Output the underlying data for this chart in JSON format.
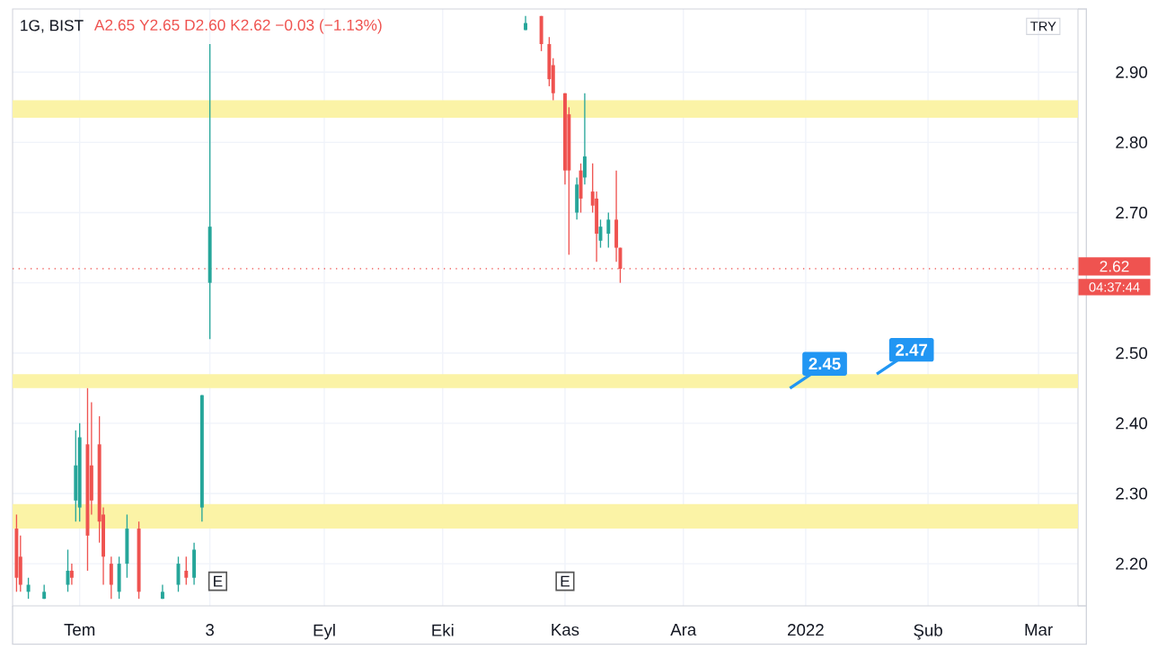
{
  "chart_data": {
    "type": "candlestick",
    "title": "1G, BIST",
    "subtitle": "A2.65 Y2.65 D2.60 K2.62 −0.03 (−1.13%)",
    "x": [
      "2021-06-15",
      "2021-06-16",
      "2021-06-18",
      "2021-06-22",
      "2021-06-28",
      "2021-06-29",
      "2021-06-30",
      "2021-07-01",
      "2021-07-03",
      "2021-07-04",
      "2021-07-06",
      "2021-07-07",
      "2021-07-09",
      "2021-07-11",
      "2021-07-13",
      "2021-07-16",
      "2021-07-22",
      "2021-07-26",
      "2021-07-28",
      "2021-07-30",
      "2021-08-01",
      "2021-08-03",
      "2021-10-22",
      "2021-10-26",
      "2021-10-28",
      "2021-10-29",
      "2021-11-01",
      "2021-11-02",
      "2021-11-04",
      "2021-11-05",
      "2021-11-06",
      "2021-11-08",
      "2021-11-09",
      "2021-11-10",
      "2021-11-12",
      "2021-11-14",
      "2021-11-15"
    ],
    "ohlc": [
      [
        2.25,
        2.27,
        2.16,
        2.18
      ],
      [
        2.21,
        2.24,
        2.16,
        2.17
      ],
      [
        2.16,
        2.18,
        2.15,
        2.17
      ],
      [
        2.15,
        2.17,
        2.15,
        2.16
      ],
      [
        2.17,
        2.22,
        2.16,
        2.19
      ],
      [
        2.19,
        2.2,
        2.17,
        2.18
      ],
      [
        2.29,
        2.39,
        2.26,
        2.34
      ],
      [
        2.28,
        2.4,
        2.26,
        2.38
      ],
      [
        2.37,
        2.45,
        2.19,
        2.24
      ],
      [
        2.34,
        2.43,
        2.27,
        2.29
      ],
      [
        2.37,
        2.41,
        2.23,
        2.26
      ],
      [
        2.27,
        2.28,
        2.17,
        2.21
      ],
      [
        2.2,
        2.21,
        2.15,
        2.17
      ],
      [
        2.16,
        2.21,
        2.15,
        2.2
      ],
      [
        2.2,
        2.27,
        2.18,
        2.25
      ],
      [
        2.25,
        2.26,
        2.15,
        2.16
      ],
      [
        2.15,
        2.17,
        2.15,
        2.16
      ],
      [
        2.17,
        2.21,
        2.16,
        2.2
      ],
      [
        2.19,
        2.21,
        2.17,
        2.18
      ],
      [
        2.18,
        2.23,
        2.17,
        2.22
      ],
      [
        2.28,
        2.44,
        2.26,
        2.44
      ],
      [
        2.6,
        2.94,
        2.52,
        2.68
      ],
      [
        2.96,
        2.98,
        2.96,
        2.97
      ],
      [
        2.98,
        2.98,
        2.93,
        2.94
      ],
      [
        2.94,
        2.95,
        2.88,
        2.89
      ],
      [
        2.91,
        2.92,
        2.86,
        2.87
      ],
      [
        2.87,
        2.87,
        2.74,
        2.76
      ],
      [
        2.84,
        2.85,
        2.64,
        2.76
      ],
      [
        2.7,
        2.75,
        2.69,
        2.74
      ],
      [
        2.76,
        2.77,
        2.7,
        2.72
      ],
      [
        2.75,
        2.87,
        2.74,
        2.78
      ],
      [
        2.73,
        2.77,
        2.7,
        2.71
      ],
      [
        2.72,
        2.73,
        2.63,
        2.67
      ],
      [
        2.66,
        2.69,
        2.65,
        2.68
      ],
      [
        2.67,
        2.7,
        2.65,
        2.69
      ],
      [
        2.69,
        2.76,
        2.63,
        2.65
      ],
      [
        2.65,
        2.65,
        2.6,
        2.62
      ]
    ],
    "colors": [
      "#ef5350",
      "#ef5350",
      "#26a69a",
      "#26a69a",
      "#26a69a",
      "#ef5350",
      "#26a69a",
      "#26a69a",
      "#ef5350",
      "#ef5350",
      "#ef5350",
      "#ef5350",
      "#ef5350",
      "#26a69a",
      "#26a69a",
      "#ef5350",
      "#26a69a",
      "#26a69a",
      "#ef5350",
      "#26a69a",
      "#26a69a",
      "#26a69a",
      "#26a69a",
      "#ef5350",
      "#ef5350",
      "#ef5350",
      "#ef5350",
      "#ef5350",
      "#26a69a",
      "#ef5350",
      "#26a69a",
      "#ef5350",
      "#ef5350",
      "#26a69a",
      "#26a69a",
      "#ef5350",
      "#ef5350"
    ],
    "xlim": [
      "2021-06-14",
      "2022-03-11"
    ],
    "ylim": [
      2.14,
      2.99
    ],
    "xticks": [
      {
        "value": "2021-07-01",
        "label": "Tem"
      },
      {
        "value": "2021-08-03",
        "label": "3"
      },
      {
        "value": "2021-09-01",
        "label": "Eyl"
      },
      {
        "value": "2021-10-01",
        "label": "Eki"
      },
      {
        "value": "2021-11-01",
        "label": "Kas"
      },
      {
        "value": "2021-12-01",
        "label": "Ara"
      },
      {
        "value": "2022-01-01",
        "label": "2022"
      },
      {
        "value": "2022-02-01",
        "label": "Şub"
      },
      {
        "value": "2022-03-01",
        "label": "Mar"
      }
    ],
    "yticks": [
      {
        "value": 2.2,
        "label": "2.20"
      },
      {
        "value": 2.3,
        "label": "2.30"
      },
      {
        "value": 2.4,
        "label": "2.40"
      },
      {
        "value": 2.5,
        "label": "2.50"
      },
      {
        "value": 2.6,
        "label": null
      },
      {
        "value": 2.7,
        "label": "2.70"
      },
      {
        "value": 2.8,
        "label": "2.80"
      },
      {
        "value": 2.9,
        "label": "2.90"
      }
    ],
    "grid": true,
    "bands": [
      {
        "axis": "y",
        "from": 2.835,
        "to": 2.86,
        "color": "#fbf3a6"
      },
      {
        "axis": "y",
        "from": 2.45,
        "to": 2.47,
        "color": "#fbf3a6"
      },
      {
        "axis": "y",
        "from": 2.25,
        "to": 2.285,
        "color": "#fbf3a6"
      }
    ],
    "ref_lines": [
      {
        "axis": "y",
        "value": 2.62,
        "label": "2.62",
        "color": "#ef5350",
        "line_style": "dotted"
      }
    ],
    "annotations": [
      {
        "text": "E",
        "x": "2021-08-05",
        "y": 2.175
      },
      {
        "text": "E",
        "x": "2021-11-01",
        "y": 2.175
      },
      {
        "text": "2.45",
        "x": "2021-12-28",
        "y": 2.45
      },
      {
        "text": "2.47",
        "x": "2022-01-19",
        "y": 2.47
      },
      "TRY",
      "04:37:44"
    ]
  }
}
